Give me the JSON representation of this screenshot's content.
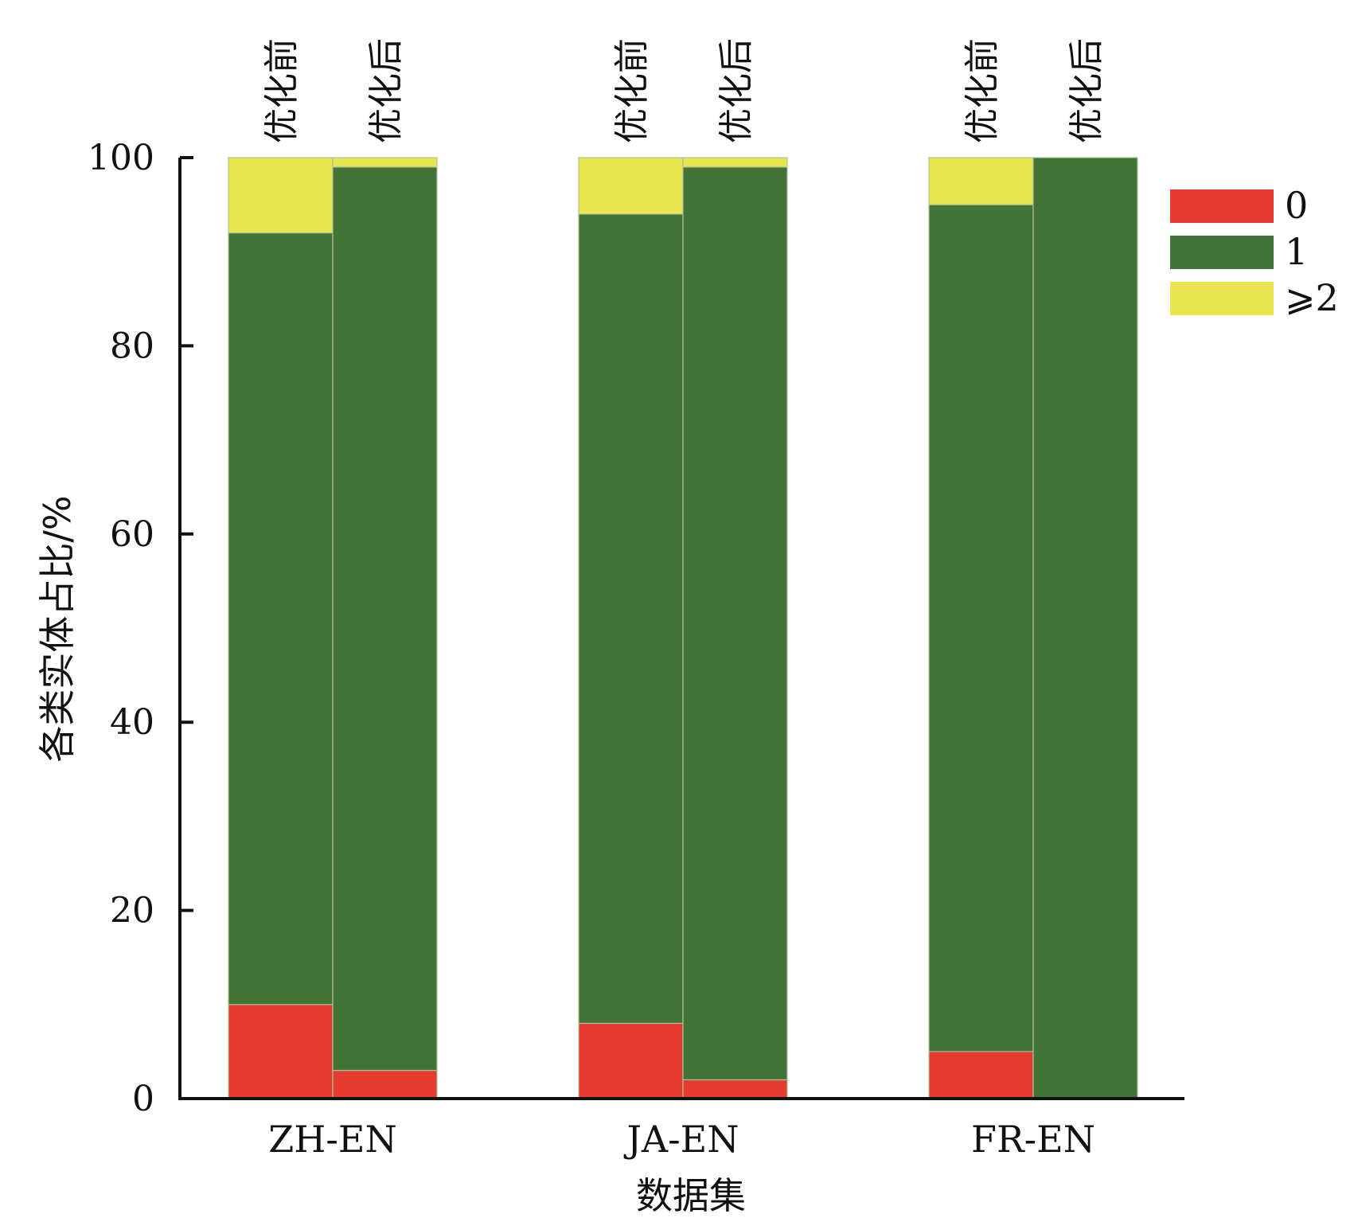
{
  "chart_data": {
    "type": "bar",
    "stacked": true,
    "ylabel": "各类实体占比/%",
    "xlabel": "数据集",
    "ylim": [
      0,
      100
    ],
    "yticks": [
      0,
      20,
      40,
      60,
      80,
      100
    ],
    "categories": [
      "ZH-EN",
      "JA-EN",
      "FR-EN"
    ],
    "phases": [
      "优化前",
      "优化后"
    ],
    "series": [
      {
        "name": "0",
        "color": "#e53b30",
        "values": [
          [
            10,
            3
          ],
          [
            8,
            2
          ],
          [
            5,
            0
          ]
        ]
      },
      {
        "name": "1",
        "color": "#437437",
        "values": [
          [
            82,
            96
          ],
          [
            86,
            97
          ],
          [
            90,
            100
          ]
        ]
      },
      {
        "name": "⩾2",
        "color": "#e9e651",
        "values": [
          [
            8,
            1
          ],
          [
            6,
            1
          ],
          [
            5,
            0
          ]
        ]
      }
    ],
    "legend_position": "top-right",
    "grid": false
  }
}
